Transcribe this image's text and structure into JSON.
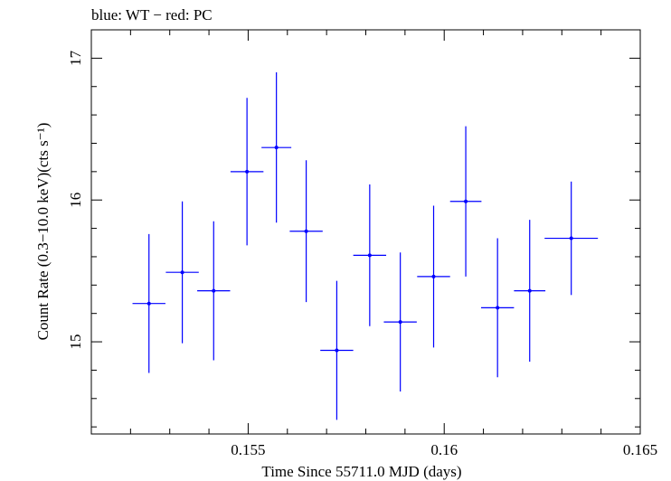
{
  "chart_data": {
    "type": "scatter",
    "title": "blue: WT − red: PC",
    "xlabel": "Time Since 55711.0 MJD (days)",
    "ylabel": "Count Rate (0.3−10.0 keV)(cts s⁻¹)",
    "xlim": [
      0.151,
      0.165
    ],
    "ylim": [
      14.35,
      17.2
    ],
    "x_ticks": [
      "0.155",
      "0.16",
      "0.165"
    ],
    "x_tick_values": [
      0.155,
      0.16,
      0.165
    ],
    "y_ticks": [
      "15",
      "16",
      "17"
    ],
    "y_tick_values": [
      15,
      16,
      17
    ],
    "grid": false,
    "series": [
      {
        "name": "WT",
        "color": "#0000ff",
        "points": [
          {
            "x": 0.15247,
            "xerr": 0.00042,
            "y": 15.27,
            "yerr": 0.49
          },
          {
            "x": 0.15332,
            "xerr": 0.00042,
            "y": 15.49,
            "yerr": 0.5
          },
          {
            "x": 0.15412,
            "xerr": 0.00042,
            "y": 15.36,
            "yerr": 0.49
          },
          {
            "x": 0.15497,
            "xerr": 0.00042,
            "y": 16.2,
            "yerr": 0.52
          },
          {
            "x": 0.15572,
            "xerr": 0.00038,
            "y": 16.37,
            "yerr": 0.53
          },
          {
            "x": 0.15648,
            "xerr": 0.00042,
            "y": 15.78,
            "yerr": 0.5
          },
          {
            "x": 0.15726,
            "xerr": 0.00042,
            "y": 14.94,
            "yerr": 0.49
          },
          {
            "x": 0.1581,
            "xerr": 0.00042,
            "y": 15.61,
            "yerr": 0.5
          },
          {
            "x": 0.15888,
            "xerr": 0.00042,
            "y": 15.14,
            "yerr": 0.49
          },
          {
            "x": 0.15973,
            "xerr": 0.00042,
            "y": 15.46,
            "yerr": 0.5
          },
          {
            "x": 0.16055,
            "xerr": 0.0004,
            "y": 15.99,
            "yerr": 0.53
          },
          {
            "x": 0.16136,
            "xerr": 0.00042,
            "y": 15.24,
            "yerr": 0.49
          },
          {
            "x": 0.16218,
            "xerr": 0.0004,
            "y": 15.36,
            "yerr": 0.5
          },
          {
            "x": 0.16324,
            "xerr": 0.00068,
            "y": 15.73,
            "yerr": 0.4
          }
        ]
      }
    ]
  }
}
